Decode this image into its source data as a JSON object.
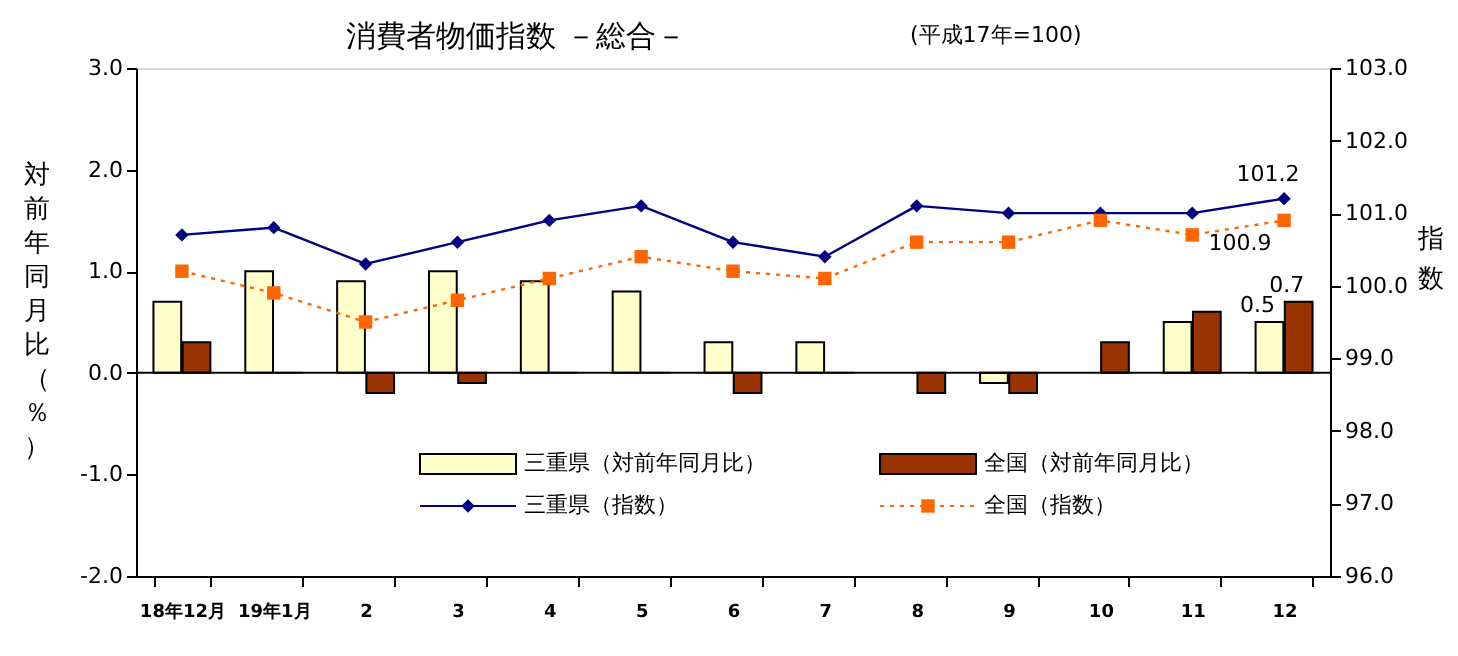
{
  "chart_data": {
    "type": "bar",
    "title": "消費者物価指数 －総合－",
    "subtitle": "(平成17年=100)",
    "ylabel": "対前年同月比（％）",
    "y2label": "指数",
    "categories": [
      "18年12月",
      "19年1月",
      "2",
      "3",
      "4",
      "5",
      "6",
      "7",
      "8",
      "9",
      "10",
      "11",
      "12"
    ],
    "series": [
      {
        "name": "三重県（対前年同月比）",
        "color": "#ffffcc",
        "values": [
          0.7,
          1.0,
          0.9,
          1.0,
          0.9,
          0.8,
          0.3,
          0.3,
          0.0,
          -0.1,
          0.0,
          0.5,
          0.5
        ],
        "value_labels": [
          null,
          null,
          null,
          null,
          null,
          null,
          null,
          null,
          null,
          null,
          null,
          null,
          "0.5"
        ]
      },
      {
        "name": "全国（対前年同月比）",
        "color": "#993300",
        "values": [
          0.3,
          0.0,
          -0.2,
          -0.1,
          0.0,
          0.0,
          -0.2,
          0.0,
          -0.2,
          -0.2,
          0.3,
          0.6,
          0.7
        ],
        "value_labels": [
          null,
          null,
          null,
          null,
          null,
          null,
          null,
          null,
          null,
          null,
          null,
          null,
          "0.7"
        ]
      },
      {
        "name": "三重県（指数）",
        "type": "line",
        "axis": "y2",
        "color": "#000080",
        "marker": "diamond",
        "line_style": "solid",
        "values": [
          100.7,
          100.8,
          100.3,
          100.6,
          100.9,
          101.1,
          100.6,
          100.4,
          101.1,
          101.0,
          101.0,
          101.0,
          101.2
        ],
        "value_labels": [
          null,
          null,
          null,
          null,
          null,
          null,
          null,
          null,
          null,
          null,
          null,
          null,
          "101.2"
        ]
      },
      {
        "name": "全国（指数）",
        "type": "line",
        "axis": "y2",
        "color": "#ff6600",
        "marker": "square",
        "line_style": "dotted",
        "values": [
          100.2,
          99.9,
          99.5,
          99.8,
          100.1,
          100.4,
          100.2,
          100.1,
          100.6,
          100.6,
          100.9,
          100.7,
          100.9
        ],
        "value_labels": [
          null,
          null,
          null,
          null,
          null,
          null,
          null,
          null,
          null,
          null,
          null,
          null,
          "100.9"
        ]
      }
    ],
    "ylim": [
      -2,
      3
    ],
    "yticks": [
      {
        "value": -2,
        "label": "-2.0"
      },
      {
        "value": -1,
        "label": "-1.0"
      },
      {
        "value": 0,
        "label": "0.0"
      },
      {
        "value": 1,
        "label": "1.0"
      },
      {
        "value": 2,
        "label": "2.0"
      },
      {
        "value": 3,
        "label": "3.0"
      }
    ],
    "y2lim": [
      96,
      103
    ],
    "y2ticks": [
      {
        "value": 96,
        "label": "96.0"
      },
      {
        "value": 97,
        "label": "97.0"
      },
      {
        "value": 98,
        "label": "98.0"
      },
      {
        "value": 99,
        "label": "99.0"
      },
      {
        "value": 100,
        "label": "100.0"
      },
      {
        "value": 101,
        "label": "101.0"
      },
      {
        "value": 102,
        "label": "102.0"
      },
      {
        "value": 103,
        "label": "103.0"
      }
    ],
    "ref_lines": [
      {
        "axis": "y",
        "value": 0,
        "color": "#000000"
      }
    ],
    "grid": false,
    "legend": "bottom"
  }
}
